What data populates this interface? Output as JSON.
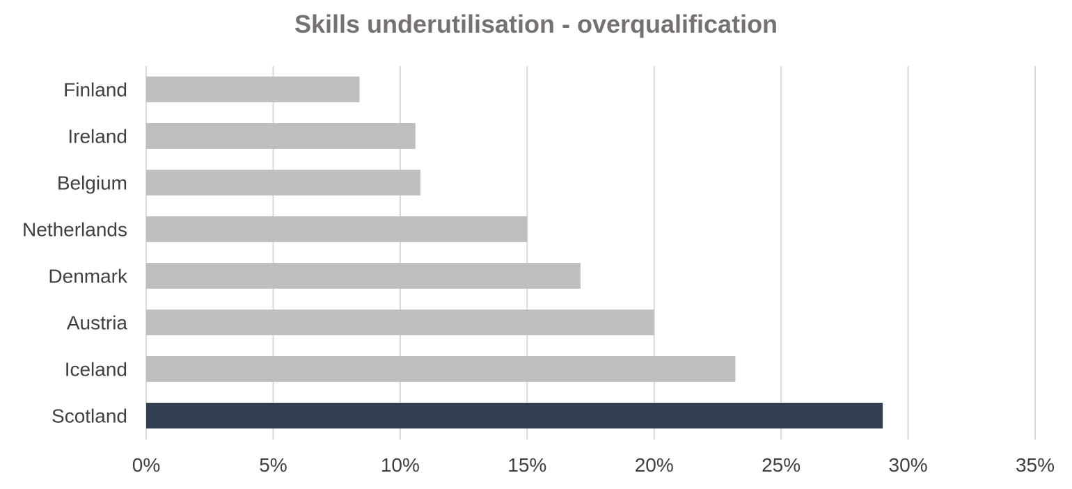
{
  "chart_data": {
    "type": "bar",
    "orientation": "horizontal",
    "title": "Skills underutilisation - overqualification",
    "categories": [
      "Finland",
      "Ireland",
      "Belgium",
      "Netherlands",
      "Denmark",
      "Austria",
      "Iceland",
      "Scotland"
    ],
    "values": [
      8.4,
      10.6,
      10.8,
      15.0,
      17.1,
      20.0,
      23.2,
      29.0
    ],
    "value_unit": "%",
    "xlim": [
      0,
      35
    ],
    "x_ticks": [
      0,
      5,
      10,
      15,
      20,
      25,
      30,
      35
    ],
    "x_tick_labels": [
      "0%",
      "5%",
      "10%",
      "15%",
      "20%",
      "25%",
      "30%",
      "35%"
    ],
    "xlabel": "",
    "ylabel": "",
    "grid": "vertical",
    "legend": "none",
    "colors": {
      "default_bar": "#bfbfbf",
      "highlight_bar": "#333f50",
      "highlight_category": "Scotland",
      "gridline": "#d9d9d9",
      "axis_text": "#404040",
      "title_text": "#767171"
    }
  }
}
